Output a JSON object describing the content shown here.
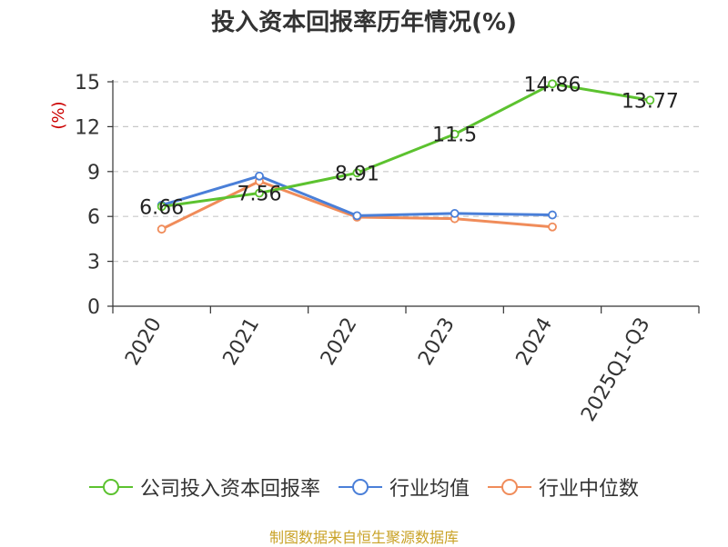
{
  "title": "投入资本回报率历年情况(%)",
  "source": "制图数据来自恒生聚源数据库",
  "chart_data": {
    "type": "line",
    "title": "投入资本回报率历年情况(%)",
    "ylabel": "(%)",
    "xlabel": "",
    "categories": [
      "2020",
      "2021",
      "2022",
      "2023",
      "2024",
      "2025Q1-Q3"
    ],
    "ylim": [
      0,
      15
    ],
    "yticks": [
      0,
      3,
      6,
      9,
      12,
      15
    ],
    "grid": true,
    "legend_position": "bottom",
    "series": [
      {
        "name": "公司投入资本回报率",
        "color": "#5cc22f",
        "values": [
          6.66,
          7.56,
          8.91,
          11.5,
          14.86,
          13.77
        ],
        "labels": [
          "6.66",
          "7.56",
          "8.91",
          "11.5",
          "14.86",
          "13.77"
        ]
      },
      {
        "name": "行业均值",
        "color": "#4a7fd8",
        "values": [
          6.75,
          8.7,
          6.05,
          6.2,
          6.1,
          null
        ]
      },
      {
        "name": "行业中位数",
        "color": "#f08c5a",
        "values": [
          5.15,
          8.35,
          5.95,
          5.85,
          5.3,
          null
        ]
      }
    ]
  }
}
